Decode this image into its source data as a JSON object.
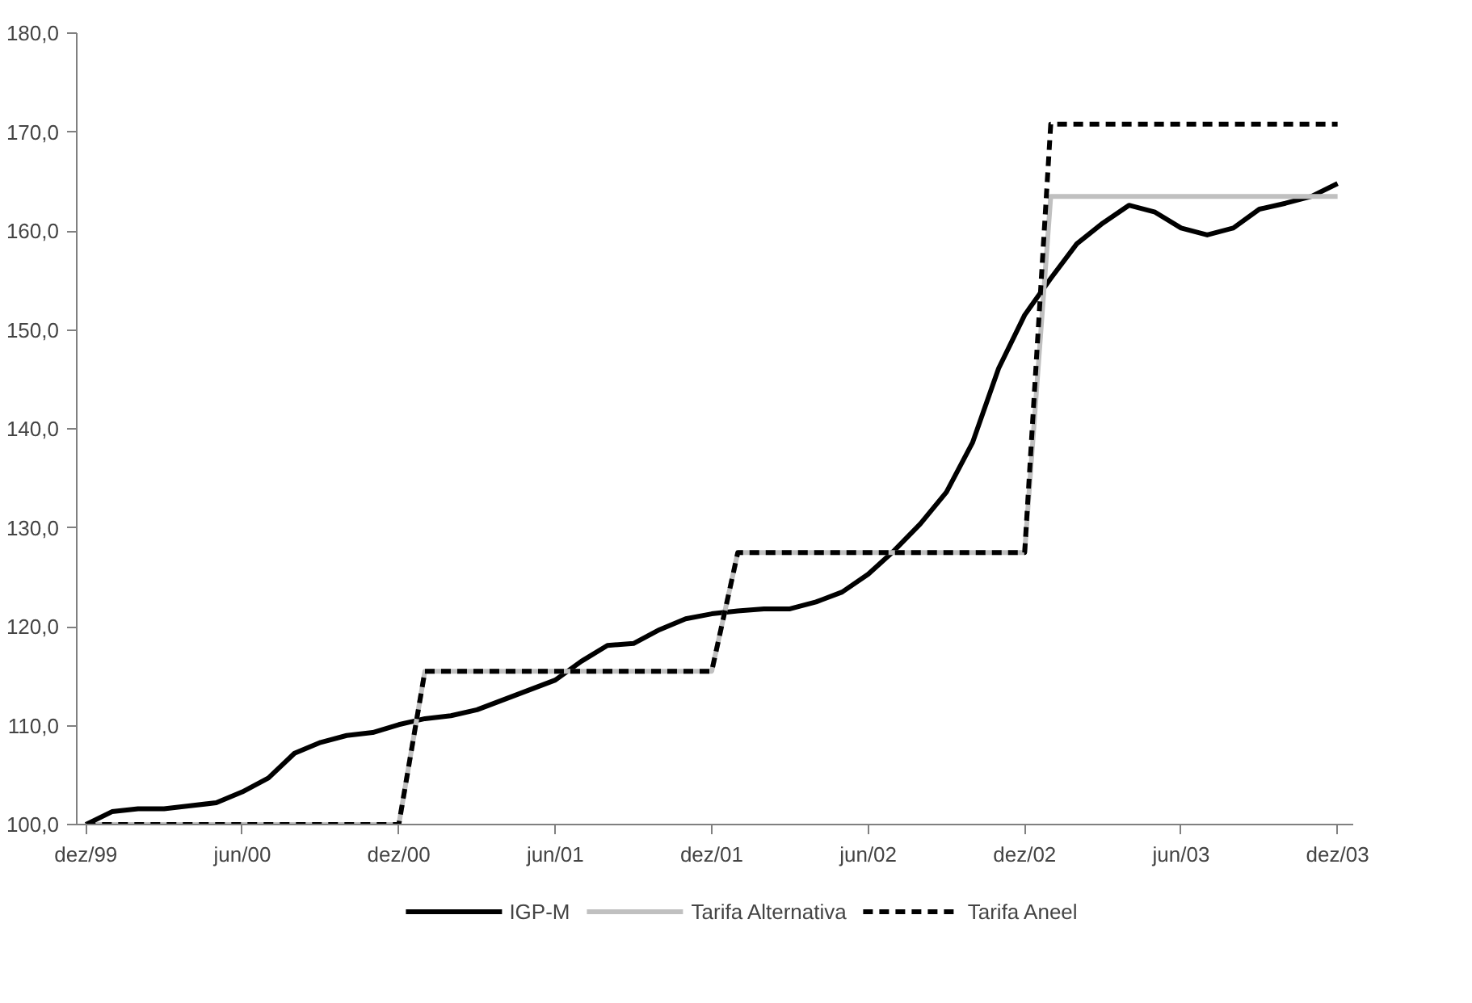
{
  "chart_data": {
    "type": "line",
    "categories": [
      "dez/99",
      null,
      null,
      null,
      null,
      null,
      "jun/00",
      null,
      null,
      null,
      null,
      null,
      "dez/00",
      null,
      null,
      null,
      null,
      null,
      "jun/01",
      null,
      null,
      null,
      null,
      null,
      "dez/01",
      null,
      null,
      null,
      null,
      null,
      "jun/02",
      null,
      null,
      null,
      null,
      null,
      "dez/02",
      null,
      null,
      null,
      null,
      null,
      "jun/03",
      null,
      null,
      null,
      null,
      null,
      "dez/03"
    ],
    "series": [
      {
        "name": "IGP-M",
        "color": "#000000",
        "line_style": "solid",
        "values": [
          100.0,
          101.3,
          101.6,
          101.6,
          101.9,
          102.2,
          103.3,
          104.7,
          107.2,
          108.3,
          109.0,
          109.3,
          110.1,
          110.7,
          111.0,
          111.6,
          112.6,
          113.6,
          114.6,
          116.5,
          118.1,
          118.3,
          119.7,
          120.8,
          121.3,
          121.6,
          121.8,
          121.8,
          122.5,
          123.5,
          125.3,
          127.7,
          130.4,
          133.6,
          138.6,
          146.1,
          151.5,
          155.2,
          158.7,
          160.8,
          162.6,
          161.9,
          160.3,
          159.6,
          160.3,
          162.2,
          162.8,
          163.5,
          164.8
        ]
      },
      {
        "name": "Tarifa Alternativa",
        "color": "#c0c0c0",
        "line_style": "solid",
        "values": [
          100.0,
          100.0,
          100.0,
          100.0,
          100.0,
          100.0,
          100.0,
          100.0,
          100.0,
          100.0,
          100.0,
          100.0,
          100.0,
          115.5,
          115.5,
          115.5,
          115.5,
          115.5,
          115.5,
          115.5,
          115.5,
          115.5,
          115.5,
          115.5,
          115.5,
          127.5,
          127.5,
          127.5,
          127.5,
          127.5,
          127.5,
          127.5,
          127.5,
          127.5,
          127.5,
          127.5,
          127.5,
          163.5,
          163.5,
          163.5,
          163.5,
          163.5,
          163.5,
          163.5,
          163.5,
          163.5,
          163.5,
          163.5,
          163.5
        ]
      },
      {
        "name": "Tarifa Aneel",
        "color": "#000000",
        "line_style": "dashed",
        "values": [
          100.0,
          100.0,
          100.0,
          100.0,
          100.0,
          100.0,
          100.0,
          100.0,
          100.0,
          100.0,
          100.0,
          100.0,
          100.0,
          115.5,
          115.5,
          115.5,
          115.5,
          115.5,
          115.5,
          115.5,
          115.5,
          115.5,
          115.5,
          115.5,
          115.5,
          127.5,
          127.5,
          127.5,
          127.5,
          127.5,
          127.5,
          127.5,
          127.5,
          127.5,
          127.5,
          127.5,
          127.5,
          170.8,
          170.8,
          170.8,
          170.8,
          170.8,
          170.8,
          170.8,
          170.8,
          170.8,
          170.8,
          170.8,
          170.8
        ]
      }
    ],
    "ylim": [
      100,
      180
    ],
    "yticks": [
      {
        "value": 100,
        "label": "100,0"
      },
      {
        "value": 110,
        "label": "110,0"
      },
      {
        "value": 120,
        "label": "120,0"
      },
      {
        "value": 130,
        "label": "130,0"
      },
      {
        "value": 140,
        "label": "140,0"
      },
      {
        "value": 150,
        "label": "150,0"
      },
      {
        "value": 160,
        "label": "160,0"
      },
      {
        "value": 170,
        "label": "170,0"
      },
      {
        "value": 180,
        "label": "180,0"
      }
    ],
    "grid": false,
    "legend": "bottom"
  }
}
